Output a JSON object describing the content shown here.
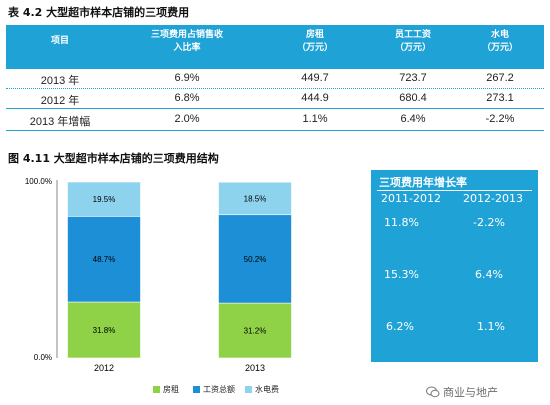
{
  "table": {
    "title": "表 4.2 大型超市样本店铺的三项费用",
    "headers": [
      [
        "项目"
      ],
      [
        "三项费用占销售收",
        "入比率"
      ],
      [
        "房租",
        "（万元）"
      ],
      [
        "员工工资",
        "（万元）"
      ],
      [
        "水电",
        "（万元）"
      ]
    ],
    "rows": [
      [
        "2013 年",
        "6.9%",
        "449.7",
        "723.7",
        "267.2"
      ],
      [
        "2012 年",
        "6.8%",
        "444.9",
        "680.4",
        "273.1"
      ],
      [
        "2013 年增幅",
        "2.0%",
        "1.1%",
        "6.4%",
        "-2.2%"
      ]
    ]
  },
  "figure": {
    "title": "图 4.11 大型超市样本店铺的三项费用结构"
  },
  "chart_data": {
    "type": "bar",
    "stacked": true,
    "categories": [
      "2012",
      "2013"
    ],
    "series": [
      {
        "name": "房租",
        "values": [
          31.8,
          31.2
        ],
        "labels": [
          "31.8%",
          "31.2%"
        ],
        "color": "#8fd147"
      },
      {
        "name": "工资总额",
        "values": [
          48.7,
          50.2
        ],
        "labels": [
          "48.7%",
          "50.2%"
        ],
        "color": "#1c8fd6"
      },
      {
        "name": "水电费",
        "values": [
          19.5,
          18.5
        ],
        "labels": [
          "19.5%",
          "18.5%"
        ],
        "color": "#8dd3ee"
      }
    ],
    "yticks": [
      "100.0%",
      "0.0%"
    ],
    "ylim": [
      0,
      100
    ],
    "legend_position": "bottom",
    "grid": false
  },
  "growth_box": {
    "title": "三项费用年增长率",
    "columns": [
      "2011-2012",
      "2012-2013"
    ],
    "rows": [
      [
        "11.8%",
        "-2.2%"
      ],
      [
        "15.3%",
        "6.4%"
      ],
      [
        "6.2%",
        "1.1%"
      ]
    ]
  },
  "watermark": {
    "text": "商业与地产"
  },
  "colors": {
    "accent": "#1fa2d6"
  }
}
